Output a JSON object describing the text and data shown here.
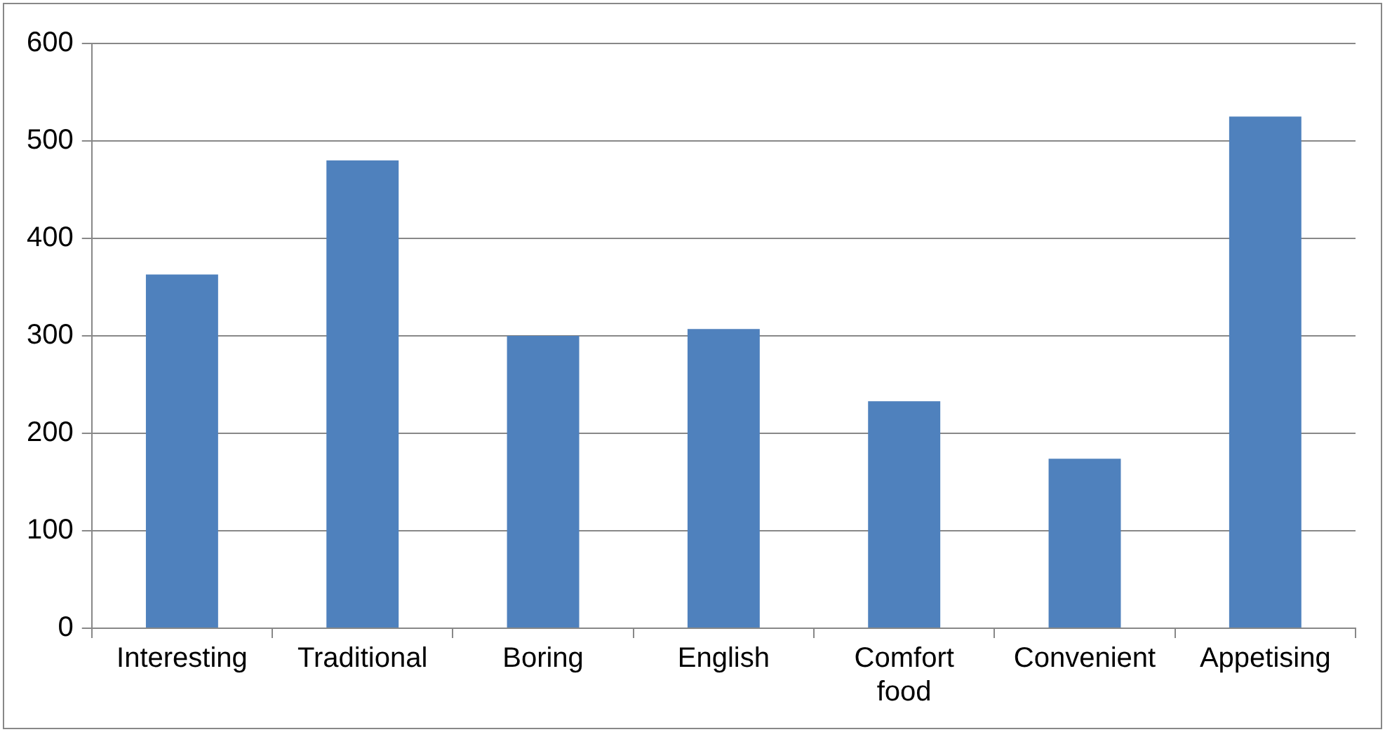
{
  "chart_data": {
    "type": "bar",
    "categories": [
      "Interesting",
      "Traditional",
      "Boring",
      "English",
      "Comfort food",
      "Convenient",
      "Appetising"
    ],
    "values": [
      363,
      480,
      300,
      307,
      233,
      174,
      525
    ],
    "color": "#4f81bd",
    "ylim": [
      0,
      600
    ],
    "yticks": [
      0,
      100,
      200,
      300,
      400,
      500,
      600
    ],
    "grid": "y",
    "legend": false
  }
}
